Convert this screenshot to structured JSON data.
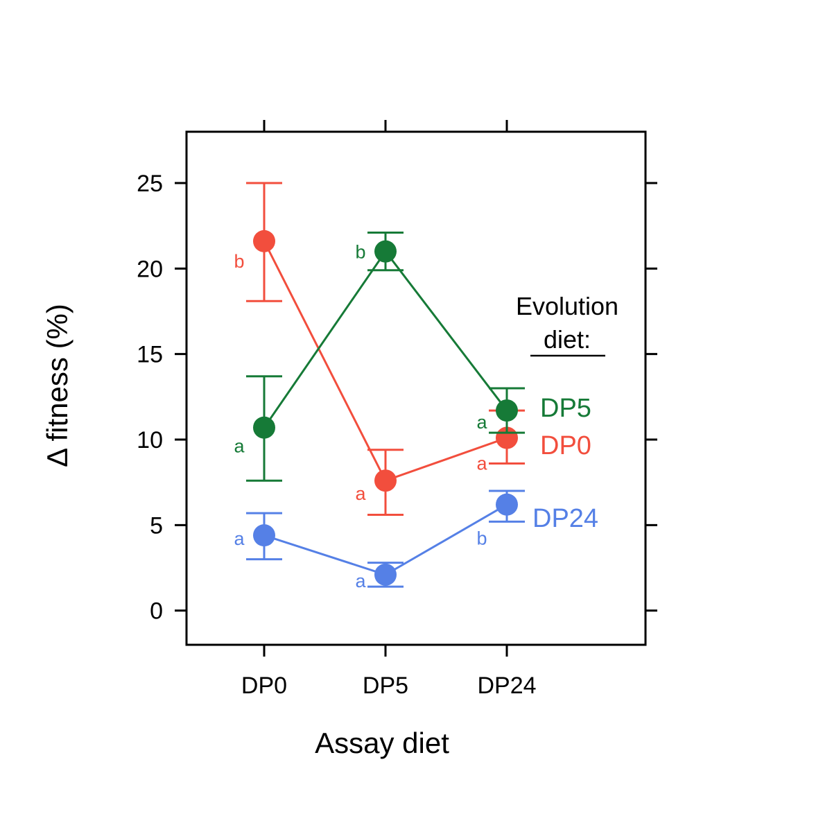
{
  "chart_data": {
    "type": "line",
    "title": "",
    "xlabel": "Assay diet",
    "ylabel": "Δ fitness (%)",
    "categories": [
      "DP0",
      "DP5",
      "DP24"
    ],
    "ylim": [
      -2,
      28
    ],
    "yticks": [
      0,
      5,
      10,
      15,
      20,
      25
    ],
    "grid": false,
    "legend_title": "Evolution diet:",
    "legend_placement": "right",
    "error_bars": true,
    "series": [
      {
        "name": "DP5",
        "color": "#167A37",
        "values": [
          10.7,
          21.0,
          11.7
        ],
        "err_low": [
          7.6,
          19.9,
          10.4
        ],
        "err_high": [
          13.7,
          22.1,
          13.0
        ],
        "sig": [
          "a",
          "b",
          "a"
        ]
      },
      {
        "name": "DP0",
        "color": "#F24E3D",
        "values": [
          21.6,
          7.6,
          10.1
        ],
        "err_low": [
          18.1,
          5.6,
          8.6
        ],
        "err_high": [
          25.0,
          9.4,
          11.7
        ],
        "sig": [
          "b",
          "a",
          "a"
        ]
      },
      {
        "name": "DP24",
        "color": "#5580E6",
        "values": [
          4.4,
          2.1,
          6.2
        ],
        "err_low": [
          3.0,
          1.4,
          5.2
        ],
        "err_high": [
          5.7,
          2.8,
          7.0
        ],
        "sig": [
          "a",
          "a",
          "b"
        ]
      }
    ]
  }
}
